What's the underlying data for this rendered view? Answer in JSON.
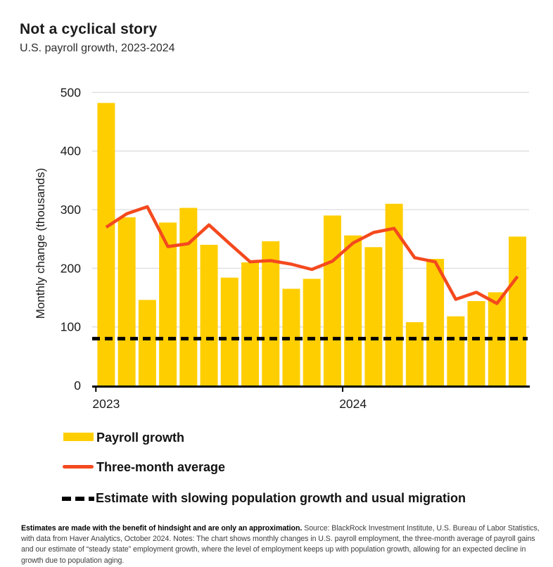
{
  "header": {
    "title": "Not a cyclical story",
    "subtitle": "U.S. payroll growth, 2023-2024"
  },
  "chart_data": {
    "type": "bar",
    "title": "Not a cyclical story",
    "subtitle": "U.S. payroll growth, 2023-2024",
    "ylabel": "Monthly change (thousands)",
    "xlabel": "",
    "ylim": [
      0,
      500
    ],
    "yticks": [
      0,
      100,
      200,
      300,
      400,
      500
    ],
    "xticks": [
      {
        "label": "2023",
        "month_index": 0
      },
      {
        "label": "2024",
        "month_index": 12
      }
    ],
    "grid": "horizontal",
    "legend_position": "bottom-left",
    "categories": [
      "Jan 2023",
      "Feb 2023",
      "Mar 2023",
      "Apr 2023",
      "May 2023",
      "Jun 2023",
      "Jul 2023",
      "Aug 2023",
      "Sep 2023",
      "Oct 2023",
      "Nov 2023",
      "Dec 2023",
      "Jan 2024",
      "Feb 2024",
      "Mar 2024",
      "Apr 2024",
      "May 2024",
      "Jun 2024",
      "Jul 2024",
      "Aug 2024",
      "Sep 2024"
    ],
    "series": [
      {
        "name": "Payroll growth",
        "type": "bar",
        "color": "#FFCE00",
        "values": [
          482,
          287,
          146,
          278,
          303,
          240,
          184,
          210,
          246,
          165,
          182,
          290,
          256,
          236,
          310,
          108,
          216,
          118,
          144,
          159,
          254
        ]
      },
      {
        "name": "Three-month average",
        "type": "line",
        "color": "#F4491E",
        "values": [
          270,
          293,
          305,
          237,
          242,
          274,
          242,
          211,
          213,
          207,
          198,
          212,
          243,
          261,
          268,
          218,
          211,
          147,
          159,
          140,
          186
        ]
      },
      {
        "name": "Estimate with slowing population growth and usual migration",
        "type": "dashed-horizontal-line",
        "color": "#000000",
        "value": 80
      }
    ],
    "colors": {
      "grid": "#DDDDE0",
      "axis": "#000000",
      "text": "#1A1A1A"
    }
  },
  "footnote": {
    "lead": "Estimates are made with the benefit of hindsight and are only an approximation.",
    "rest": "Source: BlackRock Investment Institute, U.S. Bureau of Labor Statistics, with data from Haver Analytics, October 2024. Notes: The chart shows monthly changes in U.S. payroll employment, the three-month average of payroll gains and our estimate of “steady state” employment growth, where the level of employment keeps up with population growth, allowing for an expected decline in growth due to population aging."
  }
}
